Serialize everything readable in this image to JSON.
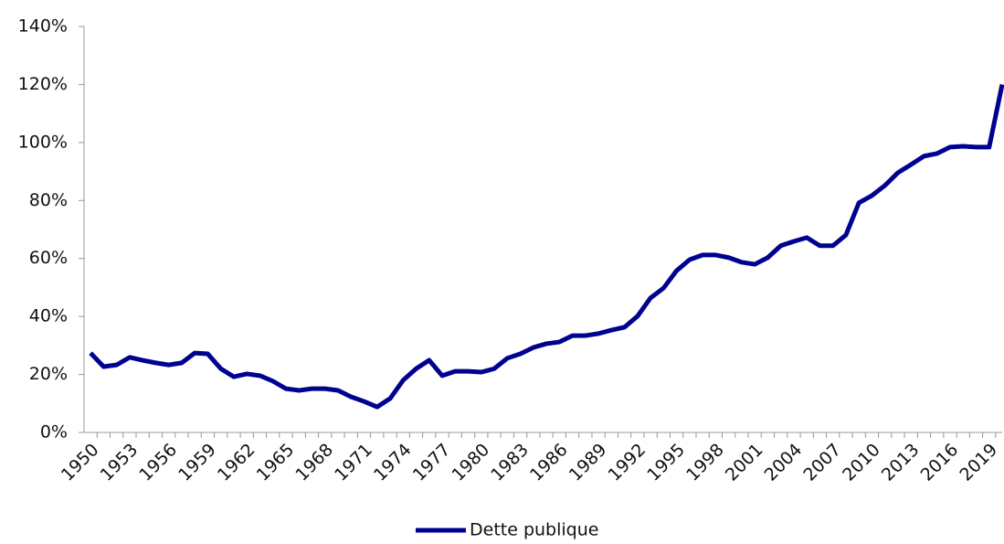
{
  "chart_data": {
    "type": "line",
    "x": [
      1950,
      1951,
      1952,
      1953,
      1954,
      1955,
      1956,
      1957,
      1958,
      1959,
      1960,
      1961,
      1962,
      1963,
      1964,
      1965,
      1966,
      1967,
      1968,
      1969,
      1970,
      1971,
      1972,
      1973,
      1974,
      1975,
      1976,
      1977,
      1978,
      1979,
      1980,
      1981,
      1982,
      1983,
      1984,
      1985,
      1986,
      1987,
      1988,
      1989,
      1990,
      1991,
      1992,
      1993,
      1994,
      1995,
      1996,
      1997,
      1998,
      1999,
      2000,
      2001,
      2002,
      2003,
      2004,
      2005,
      2006,
      2007,
      2008,
      2009,
      2010,
      2011,
      2012,
      2013,
      2014,
      2015,
      2016,
      2017,
      2018,
      2019,
      2020
    ],
    "series": [
      {
        "name": "Dette publique",
        "color": "#000091",
        "values": [
          27.4,
          22.7,
          23.3,
          25.9,
          24.9,
          24,
          23.3,
          24,
          27.4,
          27.1,
          22,
          19.2,
          20.2,
          19.6,
          17.7,
          15.1,
          14.5,
          15.1,
          15.1,
          14.5,
          12.3,
          10.7,
          8.8,
          11.7,
          18,
          22,
          24.9,
          19.6,
          21.1,
          21.1,
          20.8,
          22,
          25.6,
          27.1,
          29.3,
          30.6,
          31.2,
          33.4,
          33.4,
          34.1,
          35.3,
          36.3,
          40.1,
          46.4,
          49.8,
          55.8,
          59.6,
          61.2,
          61.2,
          60.3,
          58.7,
          58,
          60.3,
          64.4,
          65.9,
          67.2,
          64.4,
          64.4,
          68.1,
          79.2,
          81.7,
          85.2,
          89.6,
          92.4,
          95.3,
          96.2,
          98.4,
          98.7,
          98.4,
          98.4,
          120
        ]
      }
    ],
    "xlim": [
      1949.5,
      2020
    ],
    "xticks": [
      1950,
      1953,
      1956,
      1959,
      1962,
      1965,
      1968,
      1971,
      1974,
      1977,
      1980,
      1983,
      1986,
      1989,
      1992,
      1995,
      1998,
      2001,
      2004,
      2007,
      2010,
      2013,
      2016,
      2019
    ],
    "ylim": [
      0,
      140
    ],
    "yticks": [
      {
        "value": 0,
        "label": "0%"
      },
      {
        "value": 20,
        "label": "20%"
      },
      {
        "value": 40,
        "label": "40%"
      },
      {
        "value": 60,
        "label": "60%"
      },
      {
        "value": 80,
        "label": "80%"
      },
      {
        "value": 100,
        "label": "100%"
      },
      {
        "value": 120,
        "label": "120%"
      },
      {
        "value": 140,
        "label": "140%"
      }
    ],
    "legend": "bottom"
  }
}
